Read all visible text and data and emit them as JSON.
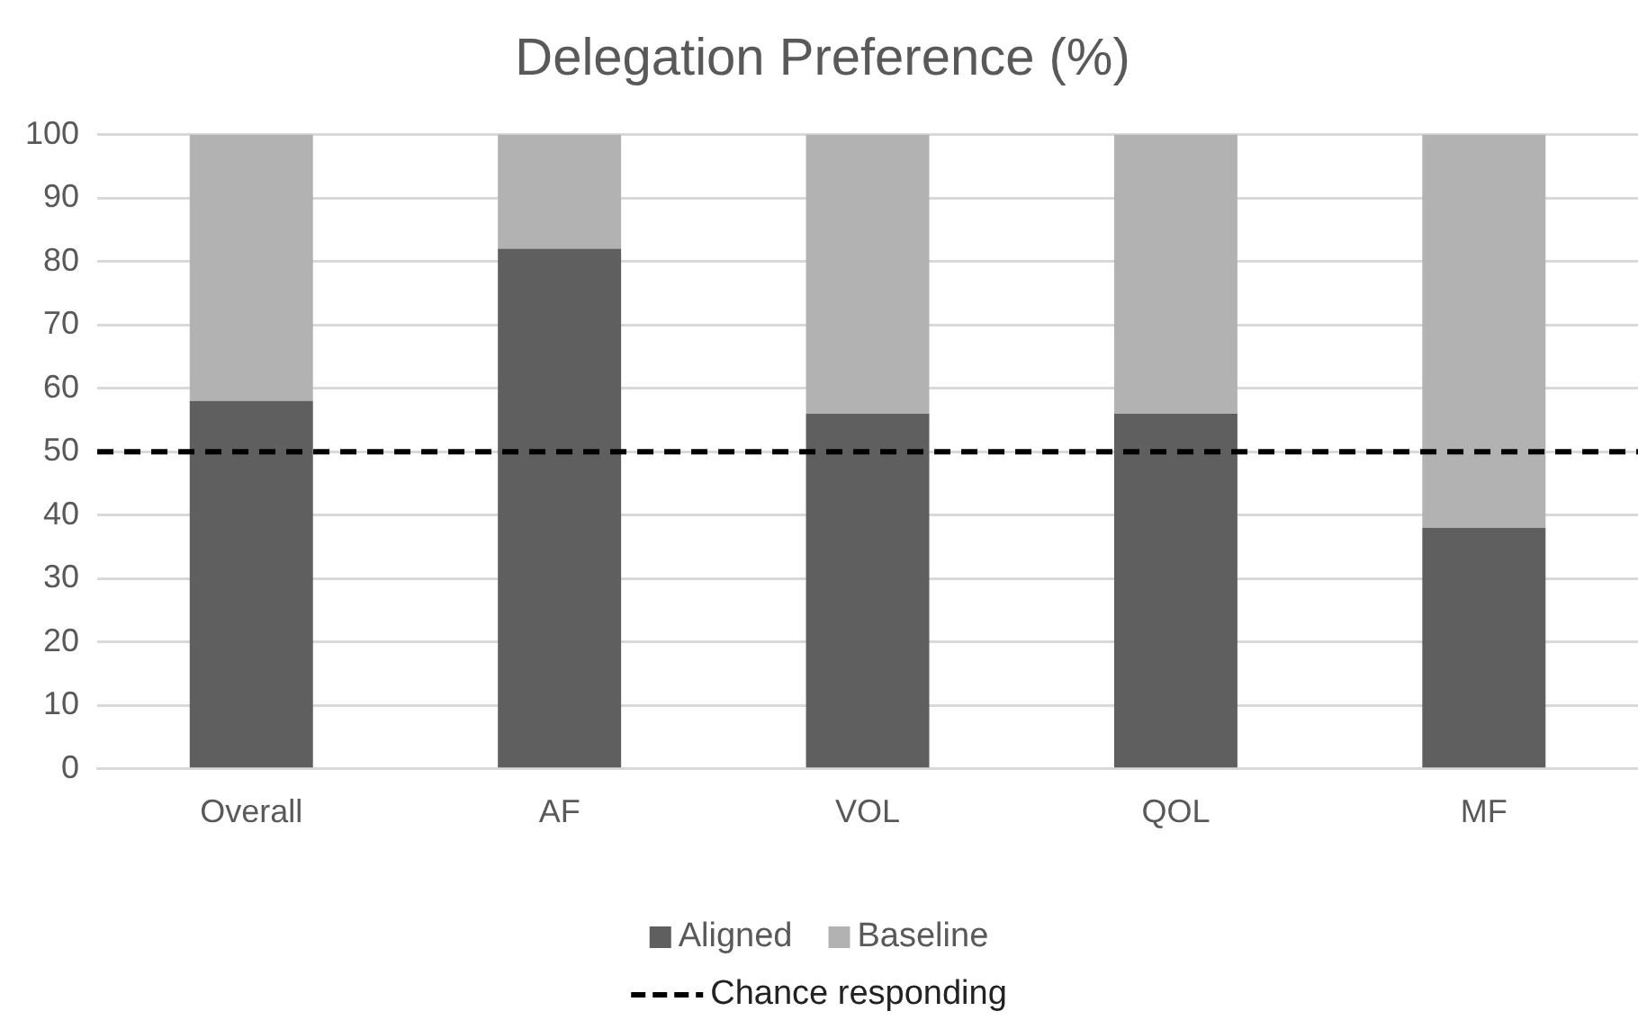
{
  "chart_data": {
    "type": "bar",
    "title": "Delegation Preference (%)",
    "stacked": true,
    "categories": [
      "Overall",
      "AF",
      "VOL",
      "QOL",
      "MF"
    ],
    "series": [
      {
        "name": "Aligned",
        "color": "#5f5f5f",
        "values": [
          58,
          82,
          56,
          56,
          38
        ]
      },
      {
        "name": "Baseline",
        "color": "#b2b2b2",
        "values": [
          42,
          18,
          44,
          44,
          62
        ]
      }
    ],
    "ylim": [
      0,
      100
    ],
    "yticks": [
      0,
      10,
      20,
      30,
      40,
      50,
      60,
      70,
      80,
      90,
      100
    ],
    "grid": "y",
    "legend": "bottom",
    "ref_lines": [
      {
        "axis": "y",
        "value": 50,
        "label": "Chance responding",
        "color": "#000000",
        "line_style": "dashed"
      }
    ]
  }
}
